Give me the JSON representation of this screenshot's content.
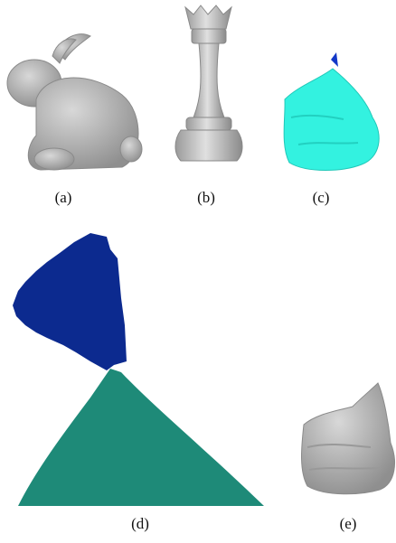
{
  "figure": {
    "subfigures": [
      {
        "label": "(a)"
      },
      {
        "label": "(b)"
      },
      {
        "label": "(c)"
      },
      {
        "label": "(d)"
      },
      {
        "label": "(e)"
      }
    ]
  }
}
